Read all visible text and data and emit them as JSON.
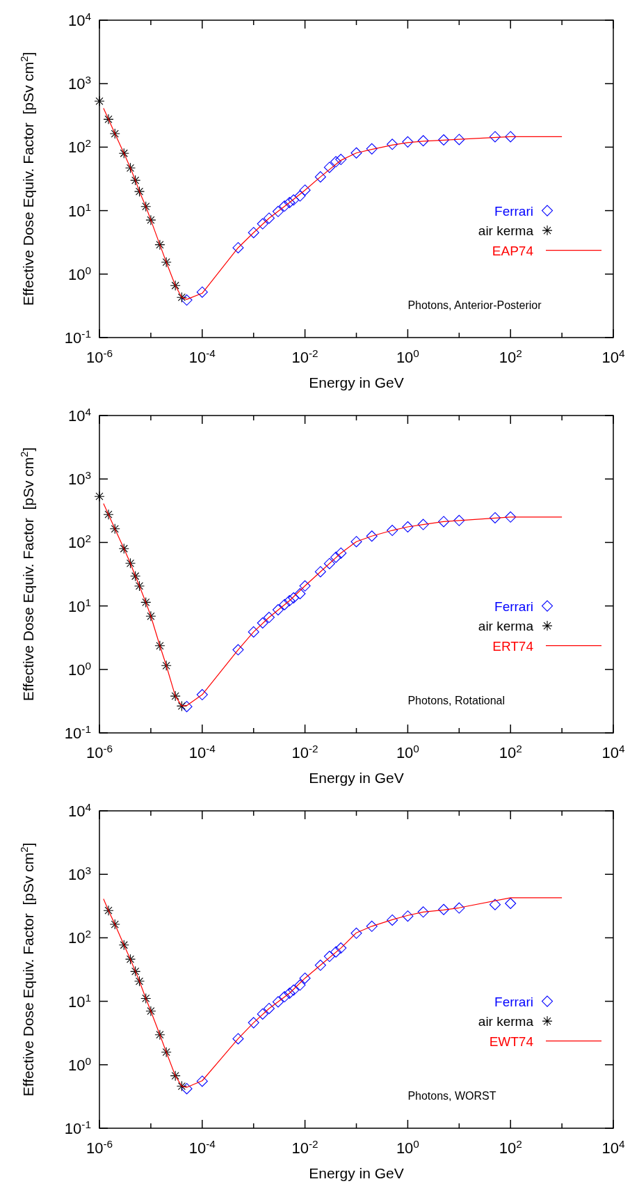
{
  "chart_data": [
    {
      "type": "scatter",
      "xlabel": "Energy in GeV",
      "ylabel": "Effective Dose Equiv. Factor  [pSv cm$^{2}$]",
      "log": "xy",
      "legend": "right",
      "grid": false,
      "annotations": [
        "Photons, Anterior-Posterior"
      ],
      "xlim": [
        1e-06,
        10000
      ],
      "ylim": [
        0.1,
        10000
      ],
      "xticks": [
        {
          "value": 1e-06,
          "label": "10$^{-6}$"
        },
        {
          "value": 1e-05,
          "label": null
        },
        {
          "value": 0.0001,
          "label": "10$^{-4}$"
        },
        {
          "value": 0.001,
          "label": null
        },
        {
          "value": 0.01,
          "label": "10$^{-2}$"
        },
        {
          "value": 0.1,
          "label": null
        },
        {
          "value": 1,
          "label": "10$^{0}$"
        },
        {
          "value": 10,
          "label": null
        },
        {
          "value": 100,
          "label": "10$^{2}$"
        },
        {
          "value": 1000,
          "label": null
        },
        {
          "value": 10000,
          "label": "10$^{4}$"
        }
      ],
      "yticks": [
        {
          "value": 0.1,
          "label": "10$^{-1}$"
        },
        {
          "value": 1,
          "label": "10$^{0}$"
        },
        {
          "value": 10,
          "label": "10$^{1}$"
        },
        {
          "value": 100,
          "label": "10$^{2}$"
        },
        {
          "value": 1000,
          "label": "10$^{3}$"
        },
        {
          "value": 10000,
          "label": "10$^{4}$"
        }
      ],
      "series": [
        {
          "name": "Ferrari",
          "type": "scatter",
          "color": "#0000ff",
          "marker": "diamond",
          "x": [
            5e-05,
            0.0001,
            0.0005,
            0.001,
            0.0015,
            0.002,
            0.003,
            0.004,
            0.005,
            0.006,
            0.008,
            0.01,
            0.02,
            0.03,
            0.04,
            0.05,
            0.1,
            0.2,
            0.5,
            1,
            2,
            5,
            10,
            50,
            100
          ],
          "values": [
            0.39,
            0.52,
            2.6,
            4.5,
            6.2,
            7.6,
            9.7,
            11.8,
            13.4,
            14.7,
            17,
            21,
            34,
            48,
            59,
            64,
            81,
            94,
            111,
            121,
            126,
            130,
            132,
            146,
            146
          ]
        },
        {
          "name": "air kerma",
          "type": "scatter",
          "color": "#000000",
          "marker": "cross",
          "x": [
            1e-06,
            1.5e-06,
            2e-06,
            3e-06,
            4e-06,
            5e-06,
            6e-06,
            8e-06,
            1e-05,
            1.5e-05,
            2e-05,
            3e-05,
            4e-05
          ],
          "values": [
            531,
            275,
            163,
            80,
            47,
            30,
            20,
            11.6,
            7.1,
            2.9,
            1.54,
            0.66,
            0.43
          ]
        },
        {
          "name": "EAP74",
          "type": "line",
          "color": "#ff0000",
          "line_style": "solid",
          "x": [
            1.2e-06,
            1.5e-06,
            2e-06,
            3e-06,
            4e-06,
            5e-06,
            6e-06,
            8e-06,
            1e-05,
            1.5e-05,
            2e-05,
            3e-05,
            4e-05,
            5e-05,
            0.0001,
            0.0005,
            0.001,
            0.002,
            0.005,
            0.01,
            0.02,
            0.05,
            0.1,
            0.2,
            0.5,
            1,
            2,
            5,
            10,
            100,
            1000
          ],
          "values": [
            410,
            275,
            163,
            80,
            47,
            30,
            20,
            11.6,
            7.1,
            2.9,
            1.54,
            0.66,
            0.43,
            0.4,
            0.5,
            2.6,
            4.5,
            7.6,
            13.4,
            21,
            34,
            62,
            81,
            92,
            108,
            118,
            124,
            129,
            133,
            146,
            146
          ]
        }
      ]
    },
    {
      "type": "scatter",
      "xlabel": "Energy in GeV",
      "ylabel": "Effective Dose Equiv. Factor  [pSv cm$^{2}$]",
      "log": "xy",
      "legend": "right",
      "grid": false,
      "annotations": [
        "Photons, Rotational"
      ],
      "xlim": [
        1e-06,
        10000
      ],
      "ylim": [
        0.1,
        10000
      ],
      "xticks": [
        {
          "value": 1e-06,
          "label": "10$^{-6}$"
        },
        {
          "value": 1e-05,
          "label": null
        },
        {
          "value": 0.0001,
          "label": "10$^{-4}$"
        },
        {
          "value": 0.001,
          "label": null
        },
        {
          "value": 0.01,
          "label": "10$^{-2}$"
        },
        {
          "value": 0.1,
          "label": null
        },
        {
          "value": 1,
          "label": "10$^{0}$"
        },
        {
          "value": 10,
          "label": null
        },
        {
          "value": 100,
          "label": "10$^{2}$"
        },
        {
          "value": 1000,
          "label": null
        },
        {
          "value": 10000,
          "label": "10$^{4}$"
        }
      ],
      "yticks": [
        {
          "value": 0.1,
          "label": "10$^{-1}$"
        },
        {
          "value": 1,
          "label": "10$^{0}$"
        },
        {
          "value": 10,
          "label": "10$^{1}$"
        },
        {
          "value": 100,
          "label": "10$^{2}$"
        },
        {
          "value": 1000,
          "label": "10$^{3}$"
        },
        {
          "value": 10000,
          "label": "10$^{4}$"
        }
      ],
      "series": [
        {
          "name": "Ferrari",
          "type": "scatter",
          "color": "#0000ff",
          "marker": "diamond",
          "x": [
            5e-05,
            0.0001,
            0.0005,
            0.001,
            0.0015,
            0.002,
            0.003,
            0.004,
            0.005,
            0.006,
            0.008,
            0.01,
            0.02,
            0.03,
            0.04,
            0.05,
            0.1,
            0.2,
            0.5,
            1,
            2,
            5,
            10,
            50,
            100
          ],
          "values": [
            0.26,
            0.4,
            2.04,
            3.9,
            5.4,
            6.6,
            8.7,
            10.5,
            12.1,
            13.4,
            15.6,
            20.7,
            34.6,
            46.5,
            58.5,
            68,
            103,
            126,
            155,
            176,
            192,
            213,
            222,
            245,
            252
          ]
        },
        {
          "name": "air kerma",
          "type": "scatter",
          "color": "#000000",
          "marker": "cross",
          "x": [
            1e-06,
            1.5e-06,
            2e-06,
            3e-06,
            4e-06,
            5e-06,
            6e-06,
            8e-06,
            1e-05,
            1.5e-05,
            2e-05,
            3e-05,
            4e-05
          ],
          "values": [
            532,
            276,
            164,
            80,
            47,
            29.5,
            20.6,
            11.4,
            6.9,
            2.36,
            1.15,
            0.38,
            0.265
          ]
        },
        {
          "name": "ERT74",
          "type": "line",
          "color": "#ff0000",
          "line_style": "solid",
          "x": [
            1.2e-06,
            1.5e-06,
            2e-06,
            3e-06,
            4e-06,
            5e-06,
            6e-06,
            8e-06,
            1e-05,
            1.5e-05,
            2e-05,
            3e-05,
            4e-05,
            5e-05,
            0.0001,
            0.0005,
            0.001,
            0.002,
            0.005,
            0.01,
            0.02,
            0.05,
            0.1,
            0.2,
            0.5,
            1,
            2,
            5,
            10,
            100,
            1000
          ],
          "values": [
            410,
            276,
            164,
            80,
            47,
            29.5,
            20.6,
            11.4,
            6.9,
            2.36,
            1.15,
            0.38,
            0.265,
            0.27,
            0.4,
            2.04,
            3.9,
            6.6,
            12.1,
            20.7,
            34.6,
            68,
            103,
            126,
            155,
            176,
            192,
            213,
            222,
            252,
            252
          ]
        }
      ]
    },
    {
      "type": "scatter",
      "xlabel": "Energy in GeV",
      "ylabel": "Effective Dose Equiv. Factor  [pSv cm$^{2}$]",
      "log": "xy",
      "legend": "right",
      "grid": false,
      "annotations": [
        "Photons, WORST"
      ],
      "xlim": [
        1e-06,
        10000
      ],
      "ylim": [
        0.1,
        10000
      ],
      "xticks": [
        {
          "value": 1e-06,
          "label": "10$^{-6}$"
        },
        {
          "value": 1e-05,
          "label": null
        },
        {
          "value": 0.0001,
          "label": "10$^{-4}$"
        },
        {
          "value": 0.001,
          "label": null
        },
        {
          "value": 0.01,
          "label": "10$^{-2}$"
        },
        {
          "value": 0.1,
          "label": null
        },
        {
          "value": 1,
          "label": "10$^{0}$"
        },
        {
          "value": 10,
          "label": null
        },
        {
          "value": 100,
          "label": "10$^{2}$"
        },
        {
          "value": 1000,
          "label": null
        },
        {
          "value": 10000,
          "label": "10$^{4}$"
        }
      ],
      "yticks": [
        {
          "value": 0.1,
          "label": "10$^{-1}$"
        },
        {
          "value": 1,
          "label": "10$^{0}$"
        },
        {
          "value": 10,
          "label": "10$^{1}$"
        },
        {
          "value": 100,
          "label": "10$^{2}$"
        },
        {
          "value": 1000,
          "label": "10$^{3}$"
        },
        {
          "value": 10000,
          "label": "10$^{4}$"
        }
      ],
      "series": [
        {
          "name": "Ferrari",
          "type": "scatter",
          "color": "#0000ff",
          "marker": "diamond",
          "x": [
            5e-05,
            0.0001,
            0.0005,
            0.001,
            0.0015,
            0.002,
            0.003,
            0.004,
            0.005,
            0.006,
            0.008,
            0.01,
            0.02,
            0.03,
            0.04,
            0.05,
            0.1,
            0.2,
            0.5,
            1,
            2,
            5,
            10,
            50,
            100
          ],
          "values": [
            0.42,
            0.55,
            2.57,
            4.6,
            6.3,
            7.7,
            9.8,
            11.8,
            13.4,
            15,
            18,
            23.1,
            37,
            51,
            60,
            69,
            118,
            152,
            190,
            220,
            255,
            279,
            295,
            334,
            348
          ]
        },
        {
          "name": "air kerma",
          "type": "scatter",
          "color": "#000000",
          "marker": "cross",
          "x": [
            1.5e-06,
            2e-06,
            3e-06,
            4e-06,
            5e-06,
            6e-06,
            8e-06,
            1e-05,
            1.5e-05,
            2e-05,
            3e-05,
            4e-05
          ],
          "values": [
            269,
            163,
            77,
            46,
            29.6,
            20.7,
            11.1,
            7,
            2.97,
            1.58,
            0.67,
            0.46
          ]
        },
        {
          "name": "EWT74",
          "type": "line",
          "color": "#ff0000",
          "line_style": "solid",
          "x": [
            1.2e-06,
            1.5e-06,
            2e-06,
            3e-06,
            4e-06,
            5e-06,
            6e-06,
            8e-06,
            1e-05,
            1.5e-05,
            2e-05,
            3e-05,
            4e-05,
            5e-05,
            0.0001,
            0.0005,
            0.001,
            0.002,
            0.005,
            0.01,
            0.02,
            0.05,
            0.1,
            0.2,
            0.5,
            1,
            2,
            5,
            10,
            100,
            1000
          ],
          "values": [
            410,
            269,
            163,
            77,
            46,
            29.6,
            20.7,
            11.1,
            7,
            2.97,
            1.58,
            0.67,
            0.46,
            0.44,
            0.56,
            2.57,
            4.6,
            7.7,
            13.4,
            23.1,
            37,
            69,
            120,
            152,
            193,
            225,
            255,
            275,
            297,
            428,
            428
          ]
        }
      ]
    }
  ]
}
